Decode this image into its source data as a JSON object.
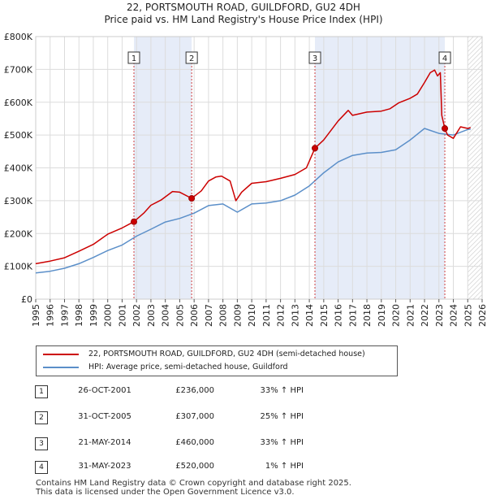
{
  "title_line1": "22, PORTSMOUTH ROAD, GUILDFORD, GU2 4DH",
  "title_line2": "Price paid vs. HM Land Registry's House Price Index (HPI)",
  "chart_data": {
    "type": "line",
    "xlim": [
      1995,
      2026
    ],
    "ylim": [
      0,
      800000
    ],
    "x_ticks": [
      1995,
      1996,
      1997,
      1998,
      1999,
      2000,
      2001,
      2002,
      2003,
      2004,
      2005,
      2006,
      2007,
      2008,
      2009,
      2010,
      2011,
      2012,
      2013,
      2014,
      2015,
      2016,
      2017,
      2018,
      2019,
      2020,
      2021,
      2022,
      2023,
      2024,
      2025,
      2026
    ],
    "y_ticks": [
      0,
      100000,
      200000,
      300000,
      400000,
      500000,
      600000,
      700000,
      800000
    ],
    "y_tick_labels": [
      "£0",
      "£100K",
      "£200K",
      "£300K",
      "£400K",
      "£500K",
      "£600K",
      "£700K",
      "£800K"
    ],
    "grid": true,
    "series": [
      {
        "name": "22, PORTSMOUTH ROAD, GUILDFORD, GU2 4DH (semi-detached house)",
        "color": "#cc0000",
        "x": [
          1995,
          1996,
          1997,
          1998,
          1999,
          2000,
          2001,
          2001.82,
          2002.5,
          2003,
          2003.7,
          2004.5,
          2005,
          2005.83,
          2006.5,
          2007,
          2007.5,
          2007.9,
          2008.5,
          2008.9,
          2009.3,
          2010,
          2011,
          2012,
          2013,
          2013.8,
          2014.39,
          2015,
          2016,
          2016.7,
          2017,
          2018,
          2019,
          2019.6,
          2020.2,
          2021,
          2021.5,
          2022,
          2022.4,
          2022.7,
          2022.9,
          2023.1,
          2023.2,
          2023.41,
          2023.6,
          2024,
          2024.5,
          2025,
          2025.2
        ],
        "y": [
          108000,
          116000,
          126000,
          146000,
          167000,
          198000,
          217000,
          236000,
          262000,
          286000,
          302000,
          328000,
          326000,
          307000,
          330000,
          360000,
          372000,
          375000,
          360000,
          300000,
          326000,
          353000,
          358000,
          368000,
          380000,
          400000,
          460000,
          485000,
          543000,
          575000,
          560000,
          570000,
          573000,
          580000,
          598000,
          612000,
          625000,
          660000,
          690000,
          698000,
          680000,
          690000,
          560000,
          520000,
          500000,
          490000,
          525000,
          520000,
          523000
        ]
      },
      {
        "name": "HPI: Average price, semi-detached house, Guildford",
        "color": "#5b8fc9",
        "x": [
          1995,
          1996,
          1997,
          1998,
          1999,
          2000,
          2001,
          2002,
          2003,
          2004,
          2005,
          2006,
          2007,
          2008,
          2009,
          2010,
          2011,
          2012,
          2013,
          2014,
          2015,
          2016,
          2017,
          2018,
          2019,
          2020,
          2021,
          2022,
          2023,
          2024,
          2025,
          2025.2
        ],
        "y": [
          80000,
          85000,
          94000,
          108000,
          127000,
          148000,
          165000,
          192000,
          213000,
          235000,
          246000,
          262000,
          285000,
          290000,
          265000,
          290000,
          293000,
          300000,
          317000,
          345000,
          385000,
          418000,
          438000,
          445000,
          447000,
          455000,
          485000,
          520000,
          505000,
          500000,
          517000,
          518000
        ]
      }
    ],
    "sales": [
      {
        "label": "1",
        "x": 2001.82,
        "y": 236000,
        "date": "26-OCT-2001",
        "price": "£236,000",
        "hpi": "33% ↑ HPI"
      },
      {
        "label": "2",
        "x": 2005.83,
        "y": 307000,
        "date": "31-OCT-2005",
        "price": "£307,000",
        "hpi": "25% ↑ HPI"
      },
      {
        "label": "3",
        "x": 2014.39,
        "y": 460000,
        "date": "21-MAY-2014",
        "price": "£460,000",
        "hpi": "33% ↑ HPI"
      },
      {
        "label": "4",
        "x": 2023.41,
        "y": 520000,
        "date": "31-MAY-2023",
        "price": "£520,000",
        "hpi": "1% ↑ HPI"
      }
    ],
    "shaded_periods": [
      [
        2001.82,
        2005.83
      ],
      [
        2014.39,
        2023.41
      ]
    ],
    "hatched_from": 2025.0
  },
  "legend": {
    "property_label": "22, PORTSMOUTH ROAD, GUILDFORD, GU2 4DH (semi-detached house)",
    "hpi_label": "HPI: Average price, semi-detached house, Guildford"
  },
  "footer": {
    "line1": "Contains HM Land Registry data © Crown copyright and database right 2025.",
    "line2": "This data is licensed under the Open Government Licence v3.0."
  }
}
